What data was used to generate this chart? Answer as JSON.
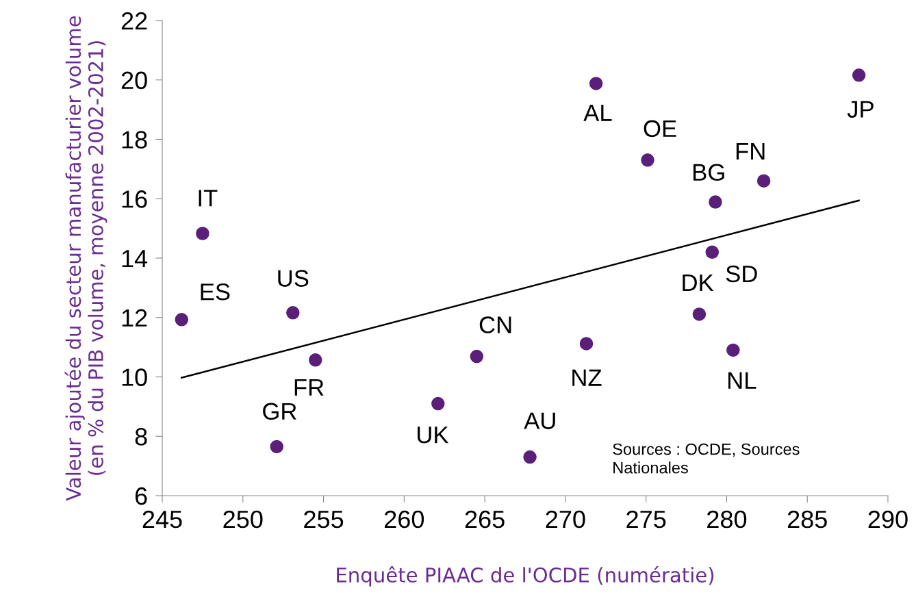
{
  "chart_data": {
    "type": "scatter",
    "xlabel": "Enquête PIAAC de l'OCDE (numératie)",
    "ylabel": "Valeur ajoutée du secteur manufacturier volume\n(en % du PIB volume, moyenne 2002-2021)",
    "x": [
      247.5,
      246.2,
      253.1,
      254.5,
      252.1,
      262.1,
      264.5,
      267.8,
      271.3,
      271.9,
      275.1,
      279.3,
      282.3,
      279.1,
      278.3,
      280.4,
      288.2
    ],
    "series": [
      {
        "color": "#5b1f7a",
        "marker": "circle",
        "values": [
          14.83,
          11.93,
          12.16,
          10.57,
          7.65,
          9.1,
          10.69,
          7.3,
          11.12,
          19.88,
          17.3,
          15.89,
          16.6,
          14.2,
          12.11,
          10.9,
          20.16
        ]
      },
      {
        "type": "line",
        "color": "#000000",
        "marker": "none",
        "x": [
          246.2,
          288.2
        ],
        "values": [
          9.97,
          15.94
        ]
      }
    ],
    "xlim": [
      245,
      290
    ],
    "xticks": [
      245,
      250,
      255,
      260,
      265,
      270,
      275,
      280,
      285,
      290
    ],
    "ylim": [
      6,
      22
    ],
    "yticks": [
      6,
      8,
      10,
      12,
      14,
      16,
      18,
      20,
      22
    ],
    "grid": false,
    "legend": false,
    "annotations": [
      {
        "text": "IT",
        "x": 247.5,
        "y": 14.83
      },
      {
        "text": "ES",
        "x": 246.2,
        "y": 11.93
      },
      {
        "text": "US",
        "x": 253.1,
        "y": 12.16
      },
      {
        "text": "FR",
        "x": 254.5,
        "y": 10.57
      },
      {
        "text": "GR",
        "x": 252.1,
        "y": 7.65
      },
      {
        "text": "UK",
        "x": 262.1,
        "y": 9.1
      },
      {
        "text": "CN",
        "x": 264.5,
        "y": 10.69
      },
      {
        "text": "AU",
        "x": 267.8,
        "y": 7.3
      },
      {
        "text": "NZ",
        "x": 271.3,
        "y": 11.12
      },
      {
        "text": "AL",
        "x": 271.9,
        "y": 19.88
      },
      {
        "text": "OE",
        "x": 275.1,
        "y": 17.3
      },
      {
        "text": "BG",
        "x": 279.3,
        "y": 15.89
      },
      {
        "text": "FN",
        "x": 282.3,
        "y": 16.6
      },
      {
        "text": "SD",
        "x": 279.1,
        "y": 14.2
      },
      {
        "text": "DK",
        "x": 278.3,
        "y": 12.11
      },
      {
        "text": "NL",
        "x": 280.4,
        "y": 10.9
      },
      {
        "text": "JP",
        "x": 288.2,
        "y": 20.16
      },
      "Sources : OCDE, Sources\nNationales"
    ]
  }
}
